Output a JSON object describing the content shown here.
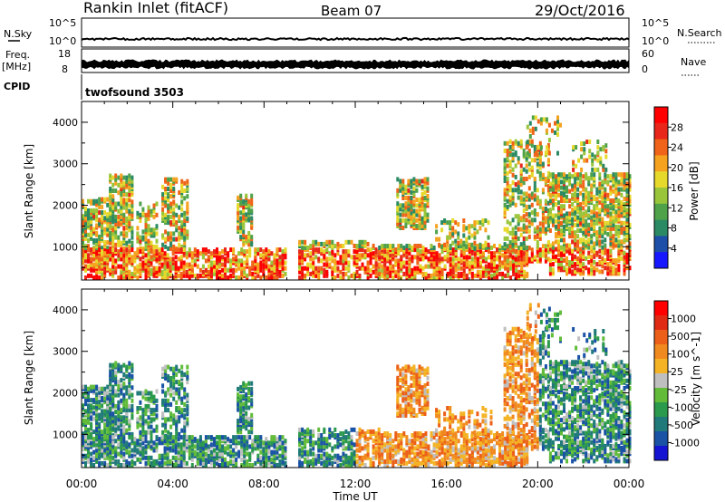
{
  "header": {
    "title": "Rankin Inlet (fitACF)",
    "beam": "Beam 07",
    "date": "29/Oct/2016"
  },
  "status_panels": {
    "nsky": {
      "label": "N.Sky",
      "ticks": [
        "10^5",
        "10^0"
      ]
    },
    "nsearch": {
      "label": "N.Search",
      "ticks": [
        "10^5",
        "10^0"
      ]
    },
    "freq": {
      "label_line1": "Freq.",
      "label_line2": "[MHz]",
      "ticks": [
        "18",
        "8"
      ]
    },
    "nave": {
      "label": "Nave",
      "ticks": [
        "60",
        "0"
      ]
    },
    "cpid": {
      "label": "CPID",
      "value": "twofsound 3503"
    }
  },
  "chart_data": [
    {
      "type": "heatmap",
      "name": "power",
      "ylabel": "Slant Range [km]",
      "xlabel": "",
      "y_ticks": [
        1000,
        2000,
        3000,
        4000
      ],
      "ylim": [
        200,
        4500
      ],
      "x_tick_labels": [
        "00:00",
        "04:00",
        "08:00",
        "12:00",
        "16:00",
        "20:00",
        "00:00"
      ],
      "xlim_hours": [
        0,
        24
      ],
      "colorbar": {
        "label": "Power [dB]",
        "tick_labels": [
          "4",
          "8",
          "12",
          "16",
          "20",
          "24",
          "28"
        ],
        "colors": [
          "#1717ff",
          "#1d4fa8",
          "#2a8a63",
          "#4fa24a",
          "#98c53a",
          "#e6d92c",
          "#f5a21f",
          "#ef6418",
          "#e8261a",
          "#ff0000"
        ]
      }
    },
    {
      "type": "heatmap",
      "name": "velocity",
      "ylabel": "Slant Range [km]",
      "xlabel": "Time UT",
      "y_ticks": [
        1000,
        2000,
        3000,
        4000
      ],
      "ylim": [
        200,
        4500
      ],
      "x_tick_labels": [
        "00:00",
        "04:00",
        "08:00",
        "12:00",
        "16:00",
        "20:00",
        "00:00"
      ],
      "xlim_hours": [
        0,
        24
      ],
      "colorbar": {
        "label": "Velocity [m s^-1]",
        "tick_labels": [
          "1000",
          "500",
          "100",
          "25",
          "-25",
          "-100",
          "-500",
          "-1000"
        ],
        "colors": [
          "#1414d2",
          "#1a52a6",
          "#217a7a",
          "#2c9a4c",
          "#62bc3a",
          "#bfbfbf",
          "#f4b324",
          "#f18a1e",
          "#ec5f18",
          "#e02a14",
          "#ff0000"
        ]
      }
    }
  ]
}
